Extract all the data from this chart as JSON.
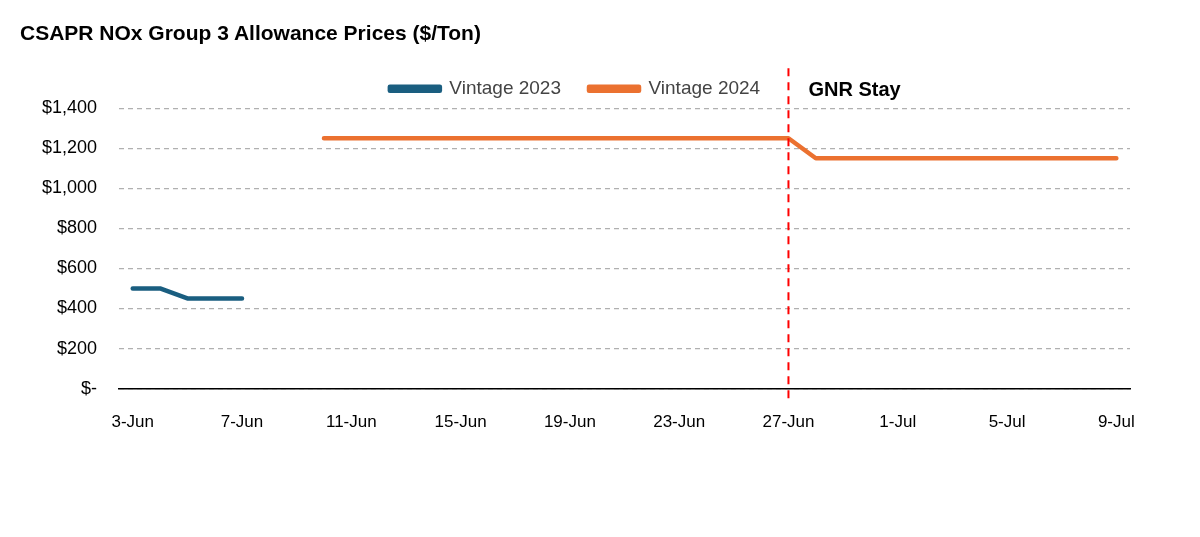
{
  "chart_data": {
    "type": "line",
    "title": "CSAPR NOx Group 3 Allowance Prices ($/Ton)",
    "series": [
      {
        "name": "Vintage 2023",
        "color": "#1a5e80",
        "x": [
          "--06-03",
          "--06-04",
          "--06-05",
          "--06-06",
          "--06-07"
        ],
        "values": [
          500,
          500,
          450,
          450,
          450
        ]
      },
      {
        "name": "Vintage 2024",
        "color": "#eb7130",
        "x": [
          "--06-10",
          "--06-27",
          "--06-28",
          "--07-09"
        ],
        "values": [
          1250,
          1250,
          1150,
          1150
        ]
      }
    ],
    "xlim": [
      "--06-02T12:00",
      "--07-09T12:00"
    ],
    "xticks": [
      {
        "value": "--06-03",
        "label": "3-Jun"
      },
      {
        "value": "--06-07",
        "label": "7-Jun"
      },
      {
        "value": "--06-11",
        "label": "11-Jun"
      },
      {
        "value": "--06-15",
        "label": "15-Jun"
      },
      {
        "value": "--06-19",
        "label": "19-Jun"
      },
      {
        "value": "--06-23",
        "label": "23-Jun"
      },
      {
        "value": "--06-27",
        "label": "27-Jun"
      },
      {
        "value": "--07-01",
        "label": "1-Jul"
      },
      {
        "value": "--07-05",
        "label": "5-Jul"
      },
      {
        "value": "--07-09",
        "label": "9-Jul"
      }
    ],
    "ylim": [
      0,
      1400
    ],
    "yticks": [
      {
        "value": 0,
        "label": "$-"
      },
      {
        "value": 200,
        "label": "$200"
      },
      {
        "value": 400,
        "label": "$400"
      },
      {
        "value": 600,
        "label": "$600"
      },
      {
        "value": 800,
        "label": "$800"
      },
      {
        "value": 1000,
        "label": "$1,000"
      },
      {
        "value": 1200,
        "label": "$1,200"
      },
      {
        "value": 1400,
        "label": "$1,400"
      }
    ],
    "ref_lines": [
      {
        "axis": "x",
        "value": "--06-27",
        "label": "GNR Stay",
        "color": "#ff0000",
        "line_style": "dashed"
      }
    ],
    "grid": "y",
    "legend": "top",
    "marker": "none",
    "line_style": "solid"
  }
}
